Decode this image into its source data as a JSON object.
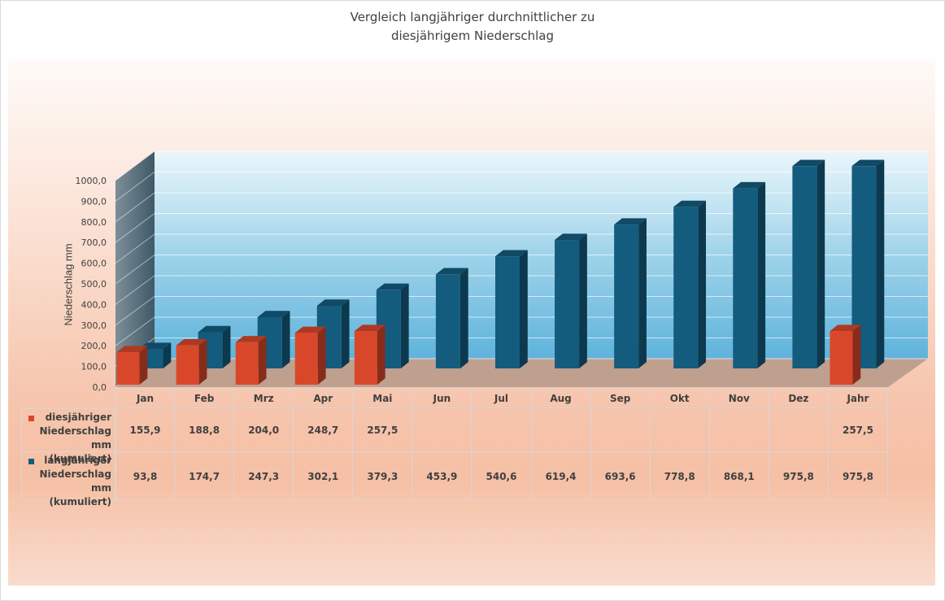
{
  "title_lines": [
    "Vergleich langjähriger durchnittlicher zu",
    "diesjährigem Niederschlag"
  ],
  "colors": {
    "series1": "#d9472b",
    "series2": "#145c7e"
  },
  "chart_data": {
    "type": "bar",
    "title": "Vergleich langjähriger durchnittlicher zu diesjährigem Niederschlag",
    "ylabel": "Niederschlag mm",
    "xlabel": "",
    "ylim": [
      0,
      1000
    ],
    "yticks": [
      "0,0",
      "100,0",
      "200,0",
      "300,0",
      "400,0",
      "500,0",
      "600,0",
      "700,0",
      "800,0",
      "900,0",
      "1000,0"
    ],
    "categories": [
      "Jan",
      "Feb",
      "Mrz",
      "Apr",
      "Mai",
      "Jun",
      "Jul",
      "Aug",
      "Sep",
      "Okt",
      "Nov",
      "Dez",
      "Jahr"
    ],
    "series": [
      {
        "name": "diesjähriger Niederschlag mm (kumuliert)",
        "values": [
          155.9,
          188.8,
          204.0,
          248.7,
          257.5,
          null,
          null,
          null,
          null,
          null,
          null,
          null,
          257.5
        ],
        "labels": [
          "155,9",
          "188,8",
          "204,0",
          "248,7",
          "257,5",
          "",
          "",
          "",
          "",
          "",
          "",
          "",
          "257,5"
        ]
      },
      {
        "name": "langjähriger Niederschlag mm (kumuliert)",
        "values": [
          93.8,
          174.7,
          247.3,
          302.1,
          379.3,
          453.9,
          540.6,
          619.4,
          693.6,
          778.8,
          868.1,
          975.8,
          975.8
        ],
        "labels": [
          "93,8",
          "174,7",
          "247,3",
          "302,1",
          "379,3",
          "453,9",
          "540,6",
          "619,4",
          "693,6",
          "778,8",
          "868,1",
          "975,8",
          "975,8"
        ]
      }
    ],
    "legend": "data-table",
    "grid": true
  }
}
